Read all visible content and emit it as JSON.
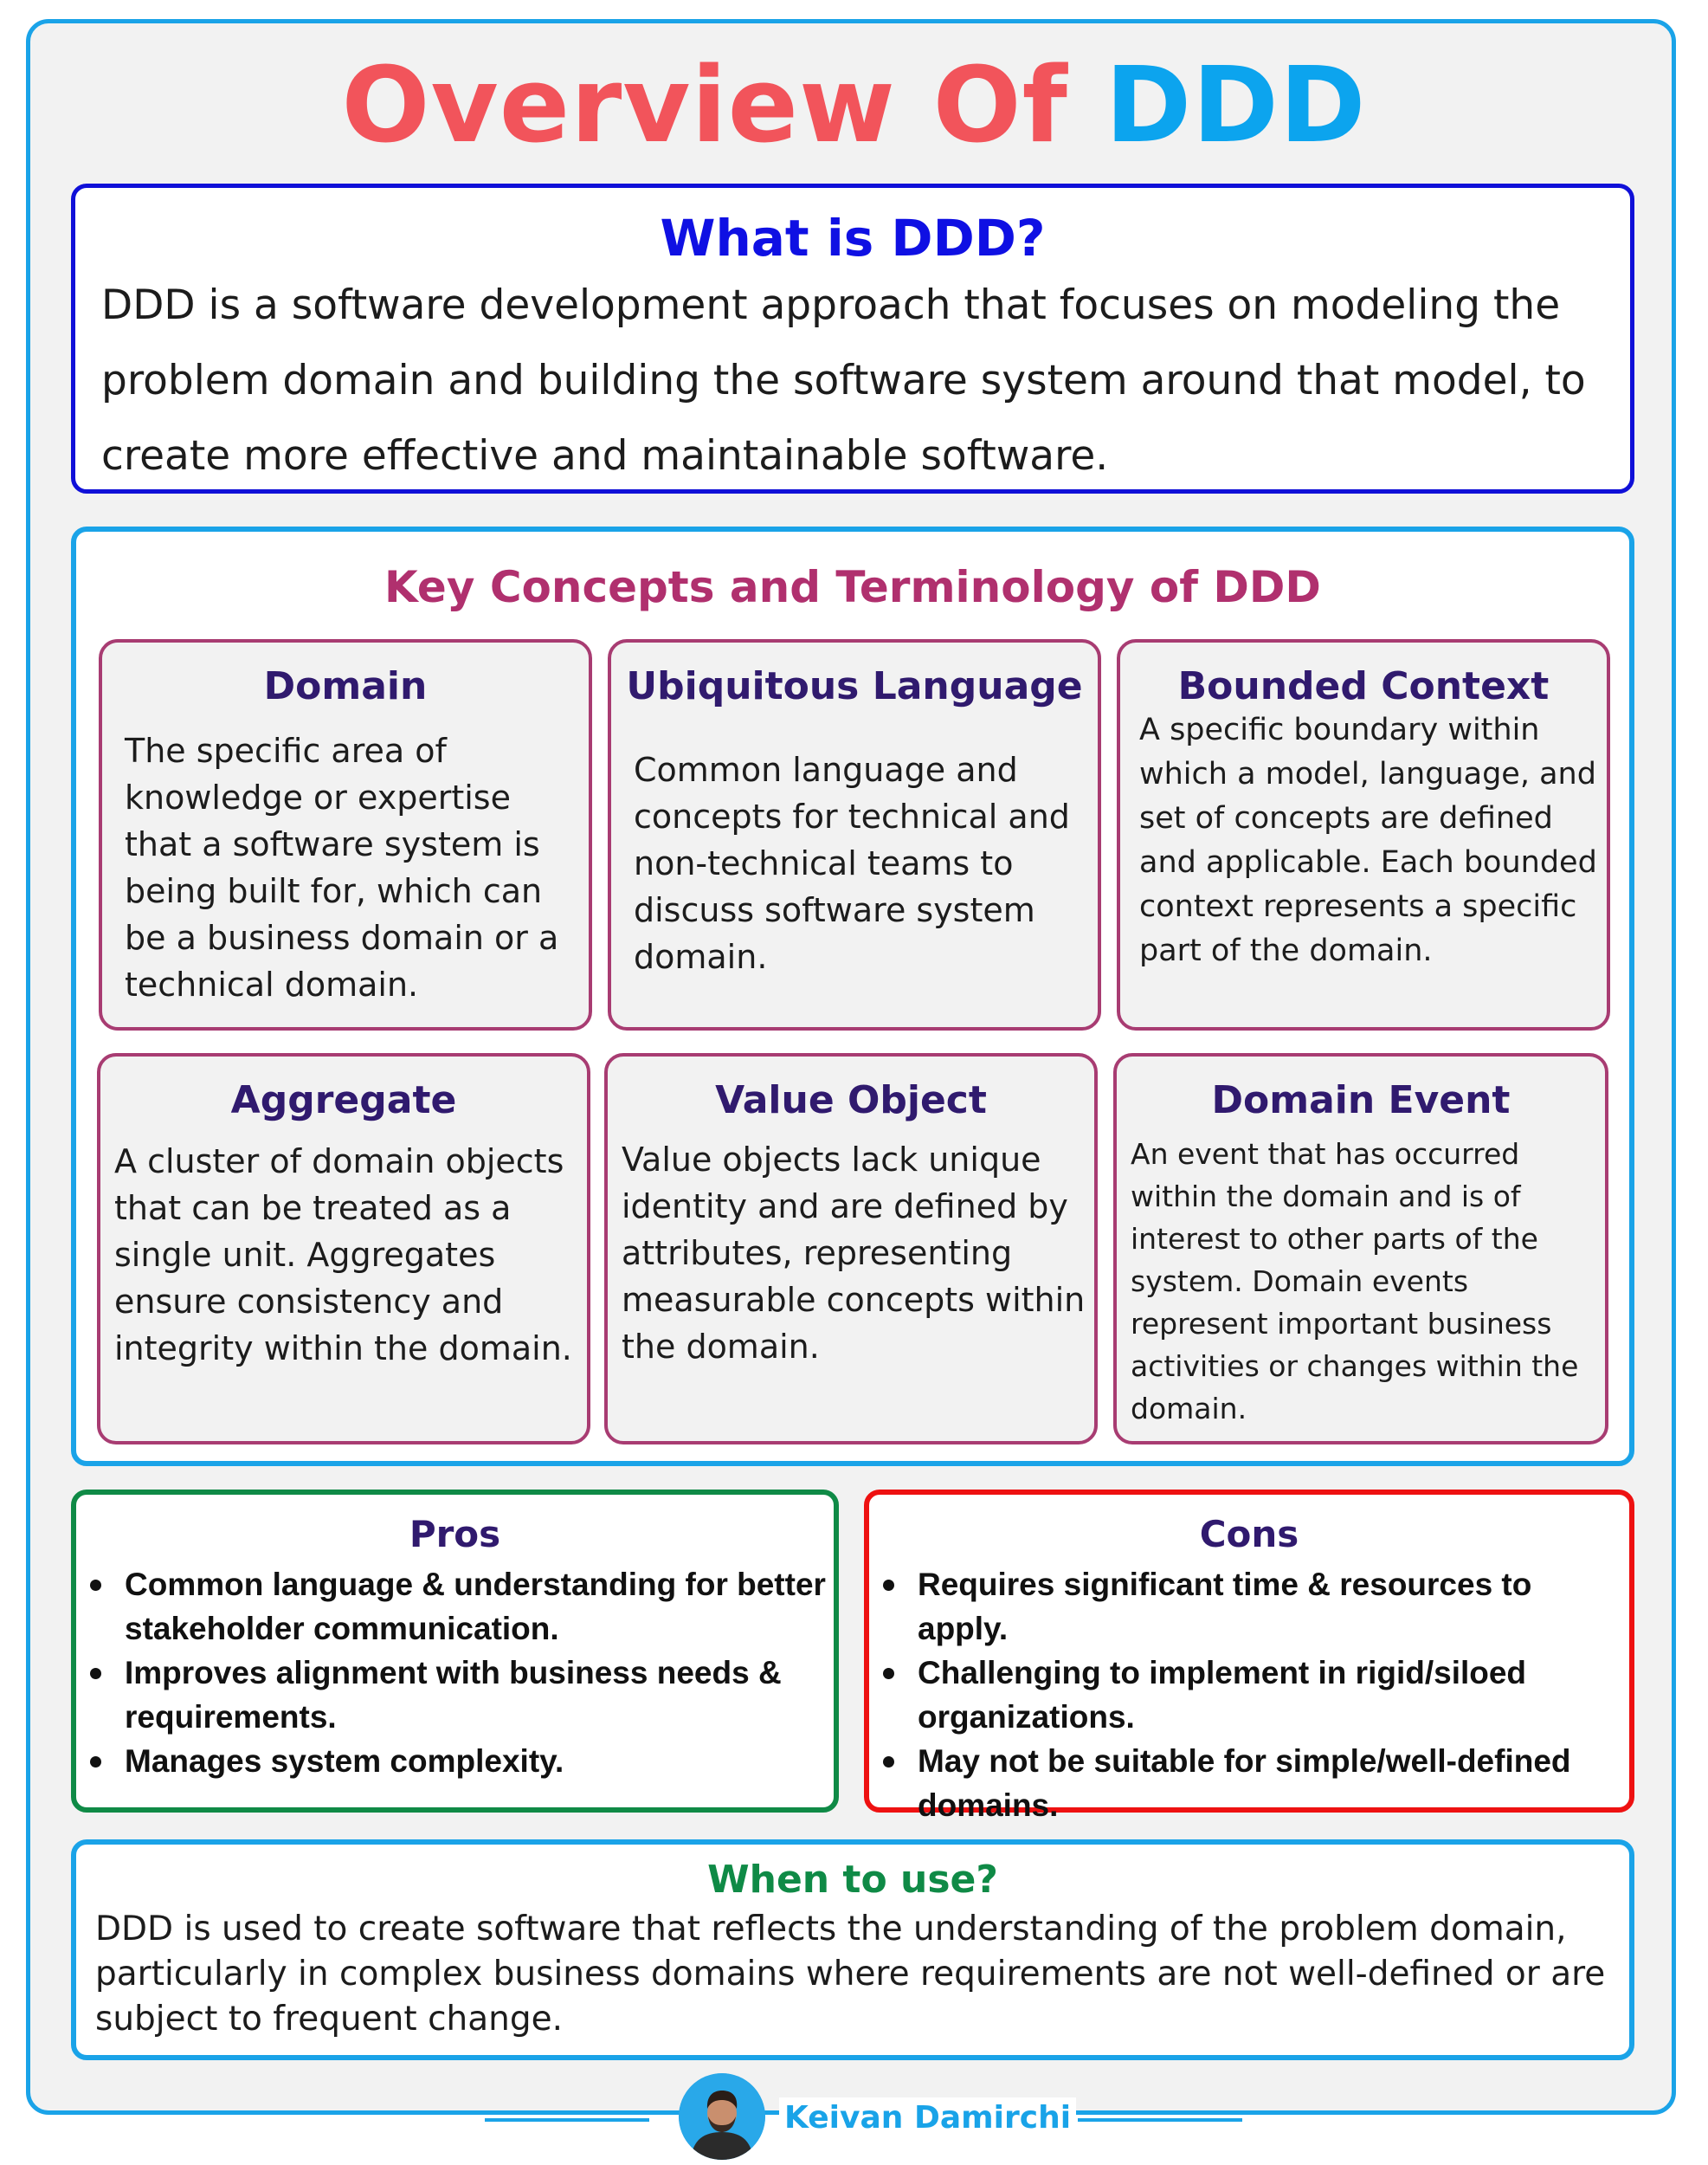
{
  "title": {
    "part1": "Overview Of",
    "part2": "DDD"
  },
  "what_is": {
    "heading": "What is DDD?",
    "text": "DDD is a software development approach that focuses on modeling the problem domain and building the software system around that model, to create more effective and maintainable software."
  },
  "key_concepts": {
    "heading": "Key Concepts and Terminology of DDD",
    "cards": [
      {
        "title": "Domain",
        "text": "The specific area of knowledge or expertise that a software system is being built for, which can be a business domain or a technical domain."
      },
      {
        "title": "Ubiquitous Language",
        "text": "Common language and concepts for technical and non-technical teams to discuss software system domain."
      },
      {
        "title": "Bounded Context",
        "text": "A specific boundary within which a model, language, and set of concepts are defined and applicable. Each bounded context represents a specific part of the domain."
      },
      {
        "title": "Aggregate",
        "text": "A cluster of domain objects that can be treated as a single unit. Aggregates ensure consistency and integrity within the domain."
      },
      {
        "title": "Value Object",
        "text": "Value objects lack unique identity and are defined by attributes, representing measurable concepts within the domain."
      },
      {
        "title": "Domain Event",
        "text": "An event that has occurred within the domain and is of interest to other parts of the system. Domain events represent important business activities or changes within the domain."
      }
    ]
  },
  "pros": {
    "heading": "Pros",
    "items": [
      "Common language & understanding for better stakeholder communication.",
      "Improves alignment with business needs & requirements.",
      "Manages system complexity."
    ]
  },
  "cons": {
    "heading": "Cons",
    "items": [
      "Requires significant time & resources to apply.",
      "Challenging to implement in rigid/siloed organizations.",
      "May not be suitable for simple/well-defined domains."
    ]
  },
  "when_to_use": {
    "heading": "When to use?",
    "text": "DDD is used to create software that reflects the understanding of the problem domain, particularly in complex business domains where requirements are not well-defined or are subject to frequent change."
  },
  "footer": {
    "author": "Keivan Damirchi",
    "avatar_icon": "person-avatar-icon"
  }
}
